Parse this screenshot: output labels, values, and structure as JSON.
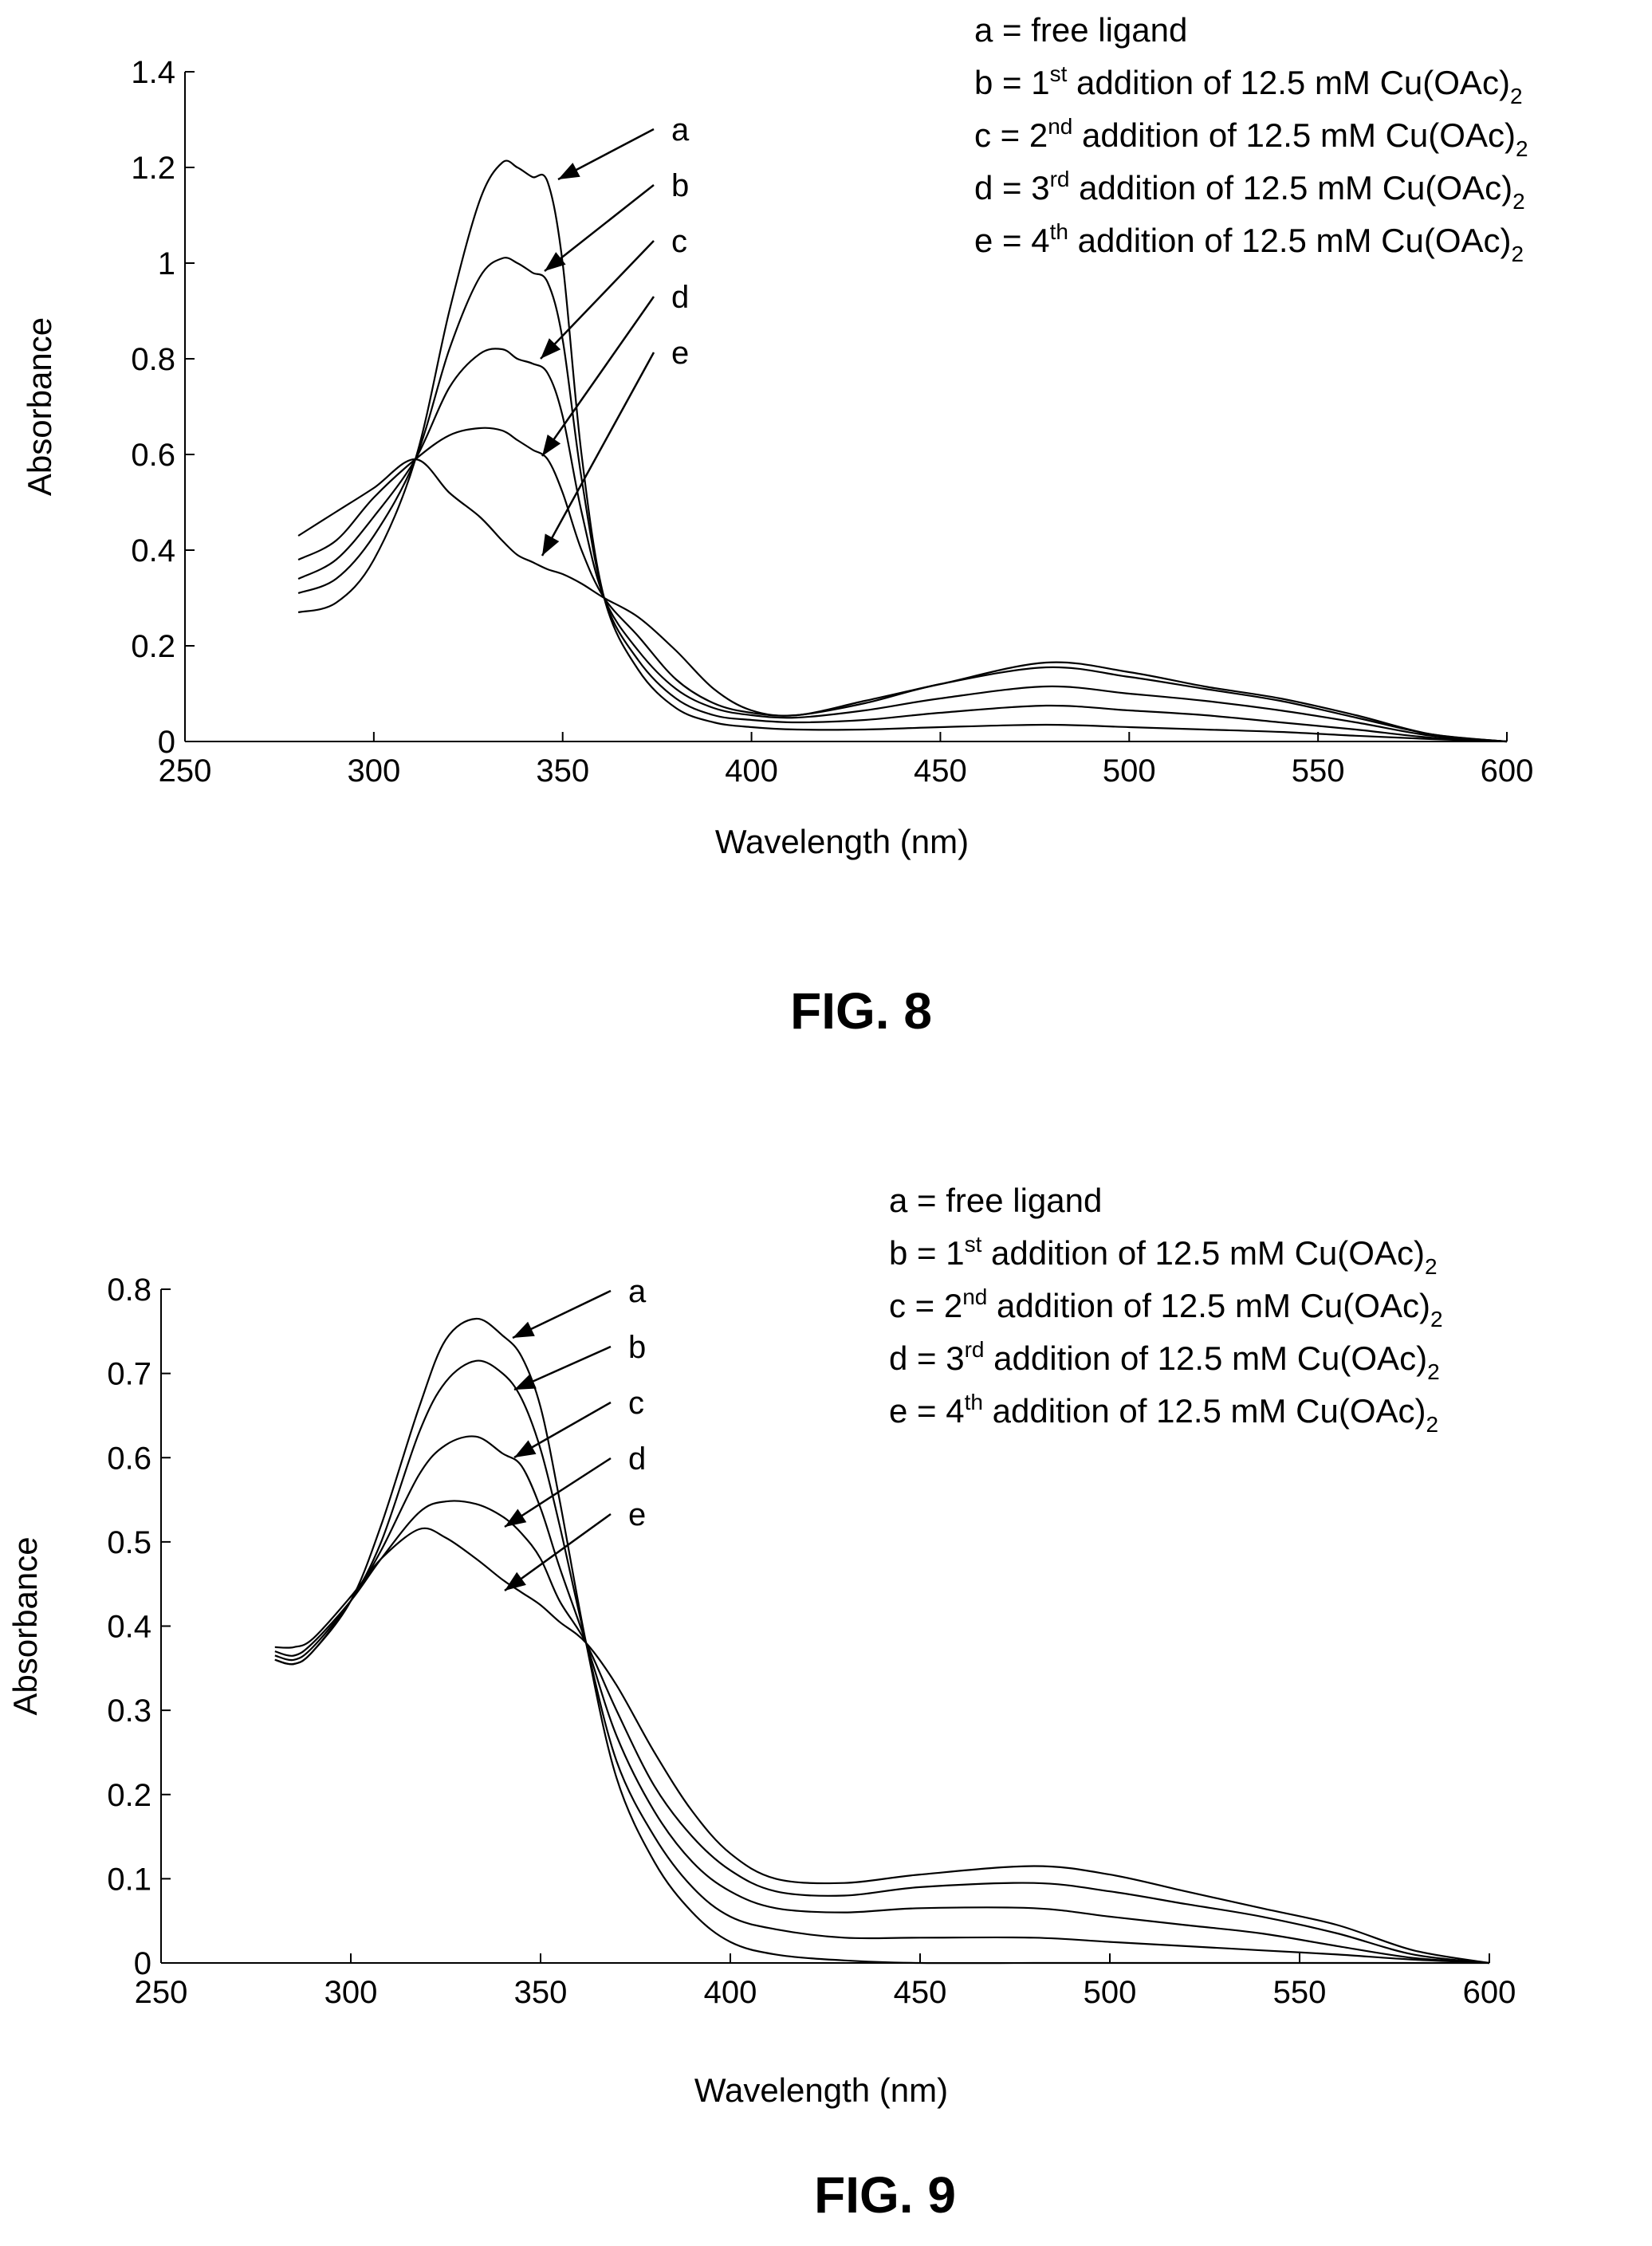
{
  "chart_data": [
    {
      "type": "line",
      "figure_label": "FIG. 8",
      "xlabel": "Wavelength (nm)",
      "ylabel": "Absorbance",
      "xlim": [
        250,
        600
      ],
      "ylim": [
        0,
        1.4
      ],
      "xticks": [
        250,
        300,
        350,
        400,
        450,
        500,
        550,
        600
      ],
      "yticks": [
        0,
        0.2,
        0.4,
        0.6,
        0.8,
        1,
        1.2,
        1.4
      ],
      "ytick_labels": [
        "0",
        "0.2",
        "0.4",
        "0.6",
        "0.8",
        "1",
        "1.2",
        "1.4"
      ],
      "legend_position": "top-right",
      "legend": [
        {
          "key": "a",
          "text": "free ligand"
        },
        {
          "key": "b",
          "ord": "1",
          "sup": "st",
          "text": "addition of 12.5 mM Cu(OAc)",
          "sub": "2"
        },
        {
          "key": "c",
          "ord": "2",
          "sup": "nd",
          "text": "addition of 12.5 mM Cu(OAc)",
          "sub": "2"
        },
        {
          "key": "d",
          "ord": "3",
          "sup": "rd",
          "text": "addition of 12.5 mM Cu(OAc)",
          "sub": "2"
        },
        {
          "key": "e",
          "ord": "4",
          "sup": "th",
          "text": "addition of 12.5 mM Cu(OAc)",
          "sub": "2"
        }
      ],
      "series": [
        {
          "name": "a",
          "x": [
            280,
            290,
            300,
            311,
            320,
            328,
            334,
            338,
            342,
            346,
            350,
            355,
            361,
            370,
            380,
            390,
            400,
            412,
            430,
            450,
            478,
            500,
            520,
            540,
            560,
            580,
            600
          ],
          "y": [
            0.27,
            0.29,
            0.38,
            0.59,
            0.9,
            1.13,
            1.21,
            1.2,
            1.18,
            1.17,
            1.0,
            0.6,
            0.3,
            0.15,
            0.07,
            0.04,
            0.03,
            0.025,
            0.025,
            0.03,
            0.035,
            0.03,
            0.025,
            0.02,
            0.012,
            0.005,
            0.0
          ]
        },
        {
          "name": "b",
          "x": [
            280,
            290,
            300,
            311,
            320,
            328,
            334,
            338,
            342,
            346,
            350,
            355,
            361,
            370,
            380,
            390,
            400,
            412,
            430,
            450,
            478,
            500,
            520,
            540,
            560,
            580,
            600
          ],
          "y": [
            0.31,
            0.34,
            0.43,
            0.59,
            0.82,
            0.97,
            1.01,
            1.0,
            0.98,
            0.96,
            0.84,
            0.55,
            0.3,
            0.17,
            0.09,
            0.055,
            0.045,
            0.04,
            0.045,
            0.06,
            0.075,
            0.065,
            0.055,
            0.04,
            0.025,
            0.008,
            0.0
          ]
        },
        {
          "name": "c",
          "x": [
            280,
            290,
            300,
            311,
            320,
            328,
            334,
            338,
            342,
            346,
            350,
            355,
            361,
            370,
            380,
            390,
            400,
            412,
            430,
            450,
            478,
            500,
            520,
            540,
            560,
            580,
            600
          ],
          "y": [
            0.34,
            0.38,
            0.47,
            0.59,
            0.74,
            0.81,
            0.82,
            0.8,
            0.79,
            0.77,
            0.68,
            0.48,
            0.3,
            0.19,
            0.11,
            0.07,
            0.055,
            0.05,
            0.065,
            0.09,
            0.115,
            0.1,
            0.085,
            0.065,
            0.04,
            0.012,
            0.0
          ]
        },
        {
          "name": "d",
          "x": [
            280,
            290,
            300,
            311,
            320,
            328,
            334,
            338,
            342,
            346,
            350,
            355,
            361,
            370,
            380,
            390,
            400,
            412,
            430,
            450,
            478,
            500,
            520,
            540,
            560,
            580,
            600
          ],
          "y": [
            0.38,
            0.42,
            0.51,
            0.59,
            0.64,
            0.655,
            0.65,
            0.63,
            0.61,
            0.59,
            0.52,
            0.4,
            0.3,
            0.22,
            0.13,
            0.08,
            0.06,
            0.055,
            0.08,
            0.12,
            0.155,
            0.135,
            0.11,
            0.085,
            0.05,
            0.015,
            0.0
          ]
        },
        {
          "name": "e",
          "x": [
            280,
            290,
            300,
            311,
            320,
            328,
            334,
            338,
            342,
            346,
            350,
            355,
            361,
            370,
            380,
            390,
            400,
            412,
            430,
            450,
            478,
            500,
            520,
            540,
            560,
            580,
            600
          ],
          "y": [
            0.43,
            0.48,
            0.53,
            0.59,
            0.52,
            0.47,
            0.42,
            0.39,
            0.375,
            0.36,
            0.35,
            0.33,
            0.3,
            0.26,
            0.19,
            0.11,
            0.065,
            0.055,
            0.085,
            0.12,
            0.165,
            0.145,
            0.115,
            0.09,
            0.055,
            0.015,
            0.0
          ]
        }
      ]
    },
    {
      "type": "line",
      "figure_label": "FIG. 9",
      "xlabel": "Wavelength (nm)",
      "ylabel": "Absorbance",
      "xlim": [
        250,
        600
      ],
      "ylim": [
        0,
        0.8
      ],
      "xticks": [
        250,
        300,
        350,
        400,
        450,
        500,
        550,
        600
      ],
      "yticks": [
        0,
        0.1,
        0.2,
        0.3,
        0.4,
        0.5,
        0.6,
        0.7,
        0.8
      ],
      "ytick_labels": [
        "0",
        "0.1",
        "0.2",
        "0.3",
        "0.4",
        "0.5",
        "0.6",
        "0.7",
        "0.8"
      ],
      "legend_position": "top-right",
      "legend": [
        {
          "key": "a",
          "text": "free ligand"
        },
        {
          "key": "b",
          "ord": "1",
          "sup": "st",
          "text": "addition of 12.5 mM Cu(OAc)",
          "sub": "2"
        },
        {
          "key": "c",
          "ord": "2",
          "sup": "nd",
          "text": "addition of 12.5 mM Cu(OAc)",
          "sub": "2"
        },
        {
          "key": "d",
          "ord": "3",
          "sup": "rd",
          "text": "addition of 12.5 mM Cu(OAc)",
          "sub": "2"
        },
        {
          "key": "e",
          "ord": "4",
          "sup": "th",
          "text": "addition of 12.5 mM Cu(OAc)",
          "sub": "2"
        }
      ],
      "series": [
        {
          "name": "a",
          "x": [
            280,
            285,
            290,
            300,
            308,
            318,
            325,
            333,
            340,
            345,
            350,
            355,
            362,
            370,
            380,
            390,
            400,
            412,
            430,
            450,
            480,
            500,
            520,
            540,
            560,
            580,
            600
          ],
          "y": [
            0.36,
            0.355,
            0.37,
            0.43,
            0.52,
            0.66,
            0.74,
            0.765,
            0.745,
            0.72,
            0.66,
            0.55,
            0.38,
            0.22,
            0.12,
            0.06,
            0.025,
            0.01,
            0.003,
            0.0,
            0.0,
            0.0,
            0.0,
            0.0,
            0.0,
            0.0,
            0.0
          ]
        },
        {
          "name": "b",
          "x": [
            280,
            285,
            290,
            300,
            308,
            318,
            325,
            333,
            340,
            345,
            350,
            355,
            362,
            370,
            380,
            390,
            400,
            412,
            430,
            450,
            480,
            500,
            520,
            540,
            560,
            580,
            600
          ],
          "y": [
            0.36,
            0.355,
            0.37,
            0.43,
            0.5,
            0.63,
            0.69,
            0.715,
            0.7,
            0.67,
            0.61,
            0.52,
            0.38,
            0.24,
            0.15,
            0.09,
            0.055,
            0.04,
            0.03,
            0.03,
            0.03,
            0.025,
            0.02,
            0.015,
            0.01,
            0.004,
            0.0
          ]
        },
        {
          "name": "c",
          "x": [
            280,
            285,
            290,
            300,
            308,
            318,
            325,
            333,
            340,
            345,
            350,
            355,
            362,
            370,
            380,
            390,
            400,
            412,
            430,
            450,
            480,
            500,
            520,
            540,
            560,
            580,
            600
          ],
          "y": [
            0.365,
            0.36,
            0.375,
            0.43,
            0.49,
            0.58,
            0.615,
            0.625,
            0.605,
            0.59,
            0.54,
            0.47,
            0.38,
            0.27,
            0.18,
            0.12,
            0.085,
            0.065,
            0.06,
            0.065,
            0.065,
            0.055,
            0.045,
            0.035,
            0.02,
            0.006,
            0.0
          ]
        },
        {
          "name": "d",
          "x": [
            280,
            285,
            290,
            300,
            308,
            318,
            325,
            333,
            340,
            345,
            350,
            355,
            362,
            370,
            380,
            390,
            400,
            412,
            430,
            450,
            480,
            500,
            520,
            540,
            560,
            580,
            600
          ],
          "y": [
            0.37,
            0.365,
            0.38,
            0.43,
            0.48,
            0.535,
            0.548,
            0.545,
            0.53,
            0.51,
            0.48,
            0.43,
            0.38,
            0.3,
            0.21,
            0.15,
            0.11,
            0.085,
            0.08,
            0.09,
            0.095,
            0.085,
            0.07,
            0.055,
            0.035,
            0.01,
            0.0
          ]
        },
        {
          "name": "e",
          "x": [
            280,
            285,
            290,
            300,
            308,
            318,
            325,
            333,
            340,
            345,
            350,
            355,
            362,
            370,
            380,
            390,
            400,
            412,
            430,
            450,
            480,
            500,
            520,
            540,
            560,
            580,
            600
          ],
          "y": [
            0.375,
            0.375,
            0.385,
            0.435,
            0.48,
            0.515,
            0.505,
            0.48,
            0.455,
            0.44,
            0.425,
            0.405,
            0.38,
            0.33,
            0.25,
            0.18,
            0.13,
            0.1,
            0.095,
            0.105,
            0.115,
            0.105,
            0.085,
            0.065,
            0.045,
            0.015,
            0.0
          ]
        }
      ]
    }
  ]
}
